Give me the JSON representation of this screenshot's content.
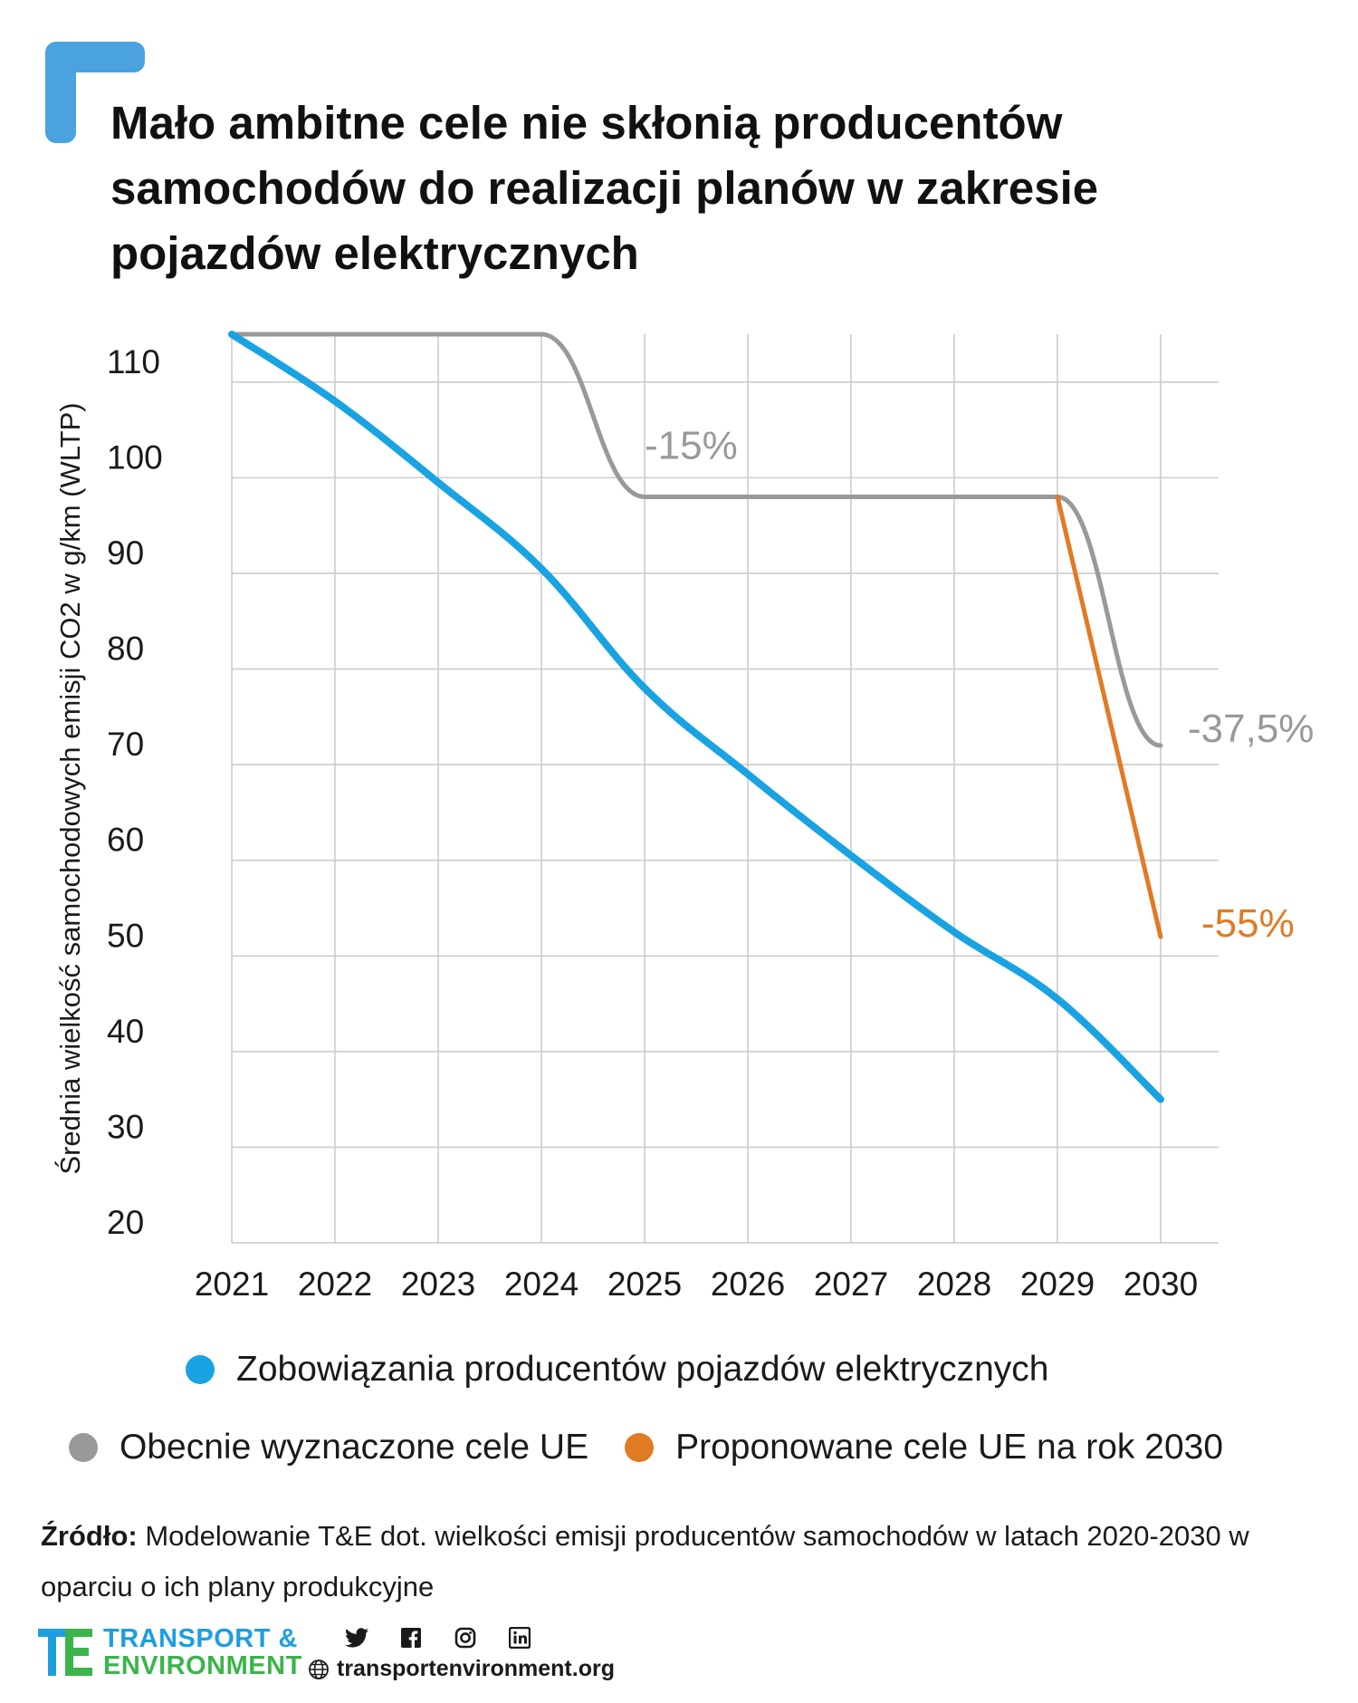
{
  "title": "Mało ambitne cele nie skłonią producentów samochodów do realizacji planów w zakresie pojazdów elektrycznych",
  "colors": {
    "accent": "#4aa3df",
    "ev_commitments": "#19a3e2",
    "current_targets": "#999999",
    "proposed_targets": "#e07b24",
    "grid": "#cccccc",
    "text": "#1a1a1a"
  },
  "chart_data": {
    "type": "line",
    "title": "",
    "xlabel": "",
    "ylabel": "Średnia wielkość samochodowych emisji CO2 w g/km (WLTP)",
    "xlim": [
      2021,
      2030
    ],
    "ylim": [
      20,
      115
    ],
    "grid": true,
    "legend_position": "bottom",
    "x_ticks": [
      "2021",
      "2022",
      "2023",
      "2024",
      "2025",
      "2026",
      "2027",
      "2028",
      "2029",
      "2030"
    ],
    "y_ticks": [
      110,
      100,
      90,
      80,
      70,
      60,
      50,
      40,
      30,
      20
    ],
    "series": [
      {
        "name": "Zobowiązania producentów pojazdów elektrycznych",
        "color": "#19a3e2",
        "x": [
          2021,
          2022,
          2023,
          2024,
          2025,
          2026,
          2027,
          2028,
          2029,
          2030
        ],
        "values": [
          115,
          108,
          99.5,
          90.5,
          78,
          69,
          60.5,
          52.5,
          45.5,
          35
        ]
      },
      {
        "name": "Obecnie wyznaczone cele UE",
        "color": "#999999",
        "x": [
          2021,
          2024,
          2025,
          2029,
          2030
        ],
        "values": [
          115,
          115,
          98,
          98,
          72
        ]
      },
      {
        "name": "Proponowane cele UE na rok 2030",
        "color": "#e07b24",
        "x": [
          2029,
          2030
        ],
        "values": [
          98,
          52
        ]
      }
    ],
    "annotations": [
      {
        "text": "-15%",
        "x": 2025,
        "y": 98,
        "color": "#999999"
      },
      {
        "text": "-37,5%",
        "x": 2030,
        "y": 72,
        "color": "#999999"
      },
      {
        "text": "-55%",
        "x": 2030,
        "y": 52,
        "color": "#e07b24"
      }
    ]
  },
  "legend": {
    "ev_commitments": "Zobowiązania producentów pojazdów elektrycznych",
    "current_targets": "Obecnie wyznaczone cele UE",
    "proposed_targets": "Proponowane cele UE na rok 2030"
  },
  "source": {
    "label": "Źródło:",
    "text": " Modelowanie T&E dot. wielkości emisji producentów samochodów w latach 2020-2030 w oparciu o ich plany produkcyjne"
  },
  "footer": {
    "brand_line1": "TRANSPORT &",
    "brand_line2": "ENVIRONMENT",
    "website": "transportenvironment.org",
    "social_icons": [
      "twitter-icon",
      "facebook-icon",
      "instagram-icon",
      "linkedin-icon",
      "globe-icon"
    ]
  }
}
